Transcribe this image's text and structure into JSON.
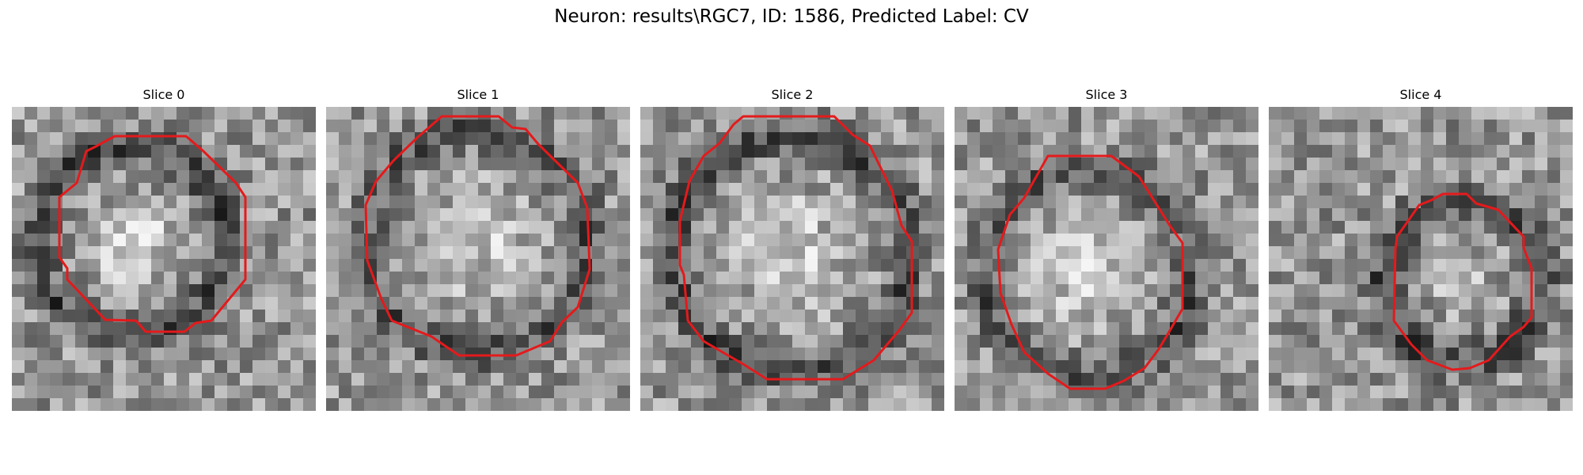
{
  "figure": {
    "title": "Neuron: results\\RGC7, ID: 1586, Predicted Label: CV"
  },
  "panels": [
    {
      "title": "Slice 0"
    },
    {
      "title": "Slice 1"
    },
    {
      "title": "Slice 2"
    },
    {
      "title": "Slice 3"
    },
    {
      "title": "Slice 4"
    }
  ],
  "colors": {
    "contour": "#e41a1c",
    "background": "#ffffff"
  }
}
